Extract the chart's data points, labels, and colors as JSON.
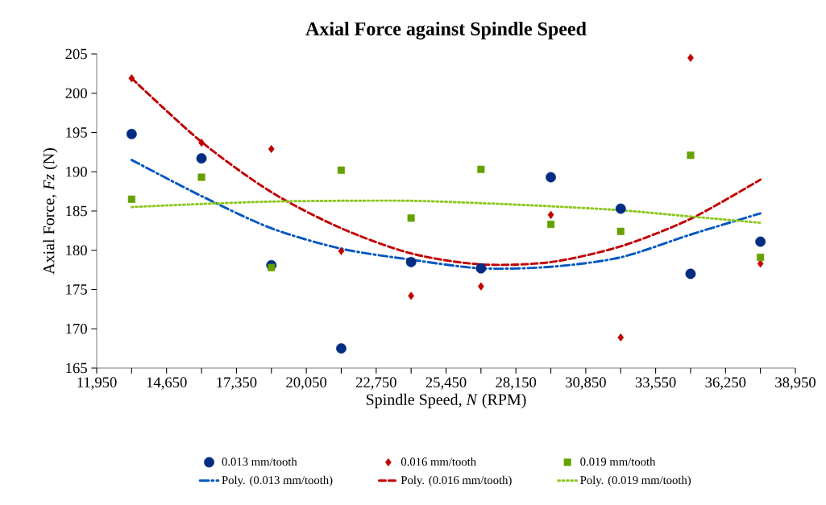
{
  "chart_data": {
    "type": "scatter",
    "title": "Axial Force against Spindle Speed",
    "xlabel": "Spindle Speed, *N* (RPM)",
    "ylabel": "Axial Force, *Fz* (N)",
    "x": [
      13300,
      16000,
      18700,
      21400,
      24100,
      26800,
      29500,
      32200,
      34900,
      37600
    ],
    "series": [
      {
        "name": "0.013 mm/tooth",
        "marker": "circle",
        "color": "#002c84",
        "values": [
          194.8,
          191.7,
          178.1,
          167.5,
          178.5,
          177.7,
          189.3,
          185.3,
          177.0,
          181.1
        ]
      },
      {
        "name": "0.016 mm/tooth",
        "marker": "diamond",
        "color": "#c00000",
        "values": [
          201.9,
          193.7,
          192.9,
          179.9,
          174.2,
          175.4,
          184.5,
          168.9,
          204.5,
          178.3
        ]
      },
      {
        "name": "0.019 mm/tooth",
        "marker": "square",
        "color": "#66a000",
        "values": [
          186.5,
          189.3,
          177.8,
          190.2,
          184.1,
          190.3,
          183.3,
          182.4,
          192.1,
          179.1
        ]
      },
      {
        "name": "Poly. (0.013 mm/tooth)",
        "type": "line",
        "marker": "none",
        "line_style": "dashdot",
        "color": "#0057c0",
        "values": [
          191.5,
          186.9,
          182.8,
          180.2,
          178.8,
          177.7,
          177.9,
          179.1,
          182.0,
          184.7
        ]
      },
      {
        "name": "Poly. (0.016 mm/tooth)",
        "type": "line",
        "marker": "none",
        "line_style": "dashed",
        "color": "#c00000",
        "values": [
          201.9,
          193.8,
          187.4,
          182.8,
          179.6,
          178.2,
          178.5,
          180.5,
          184.0,
          189.0
        ]
      },
      {
        "name": "Poly. (0.019 mm/tooth)",
        "type": "line",
        "marker": "none",
        "line_style": "dotted",
        "color": "#8cc820",
        "values": [
          185.5,
          185.9,
          186.2,
          186.3,
          186.3,
          186.0,
          185.6,
          185.1,
          184.3,
          183.5
        ]
      }
    ],
    "xlim": [
      11950,
      38950
    ],
    "xticks": [
      {
        "value": 11950,
        "label": "11,950"
      },
      {
        "value": 13300,
        "label": null
      },
      {
        "value": 14650,
        "label": "14,650"
      },
      {
        "value": 16000,
        "label": null
      },
      {
        "value": 17350,
        "label": "17,350"
      },
      {
        "value": 18700,
        "label": null
      },
      {
        "value": 20050,
        "label": "20,050"
      },
      {
        "value": 21400,
        "label": null
      },
      {
        "value": 22750,
        "label": "22,750"
      },
      {
        "value": 24100,
        "label": null
      },
      {
        "value": 25450,
        "label": "25,450"
      },
      {
        "value": 26800,
        "label": null
      },
      {
        "value": 28150,
        "label": "28,150"
      },
      {
        "value": 29500,
        "label": null
      },
      {
        "value": 30850,
        "label": "30,850"
      },
      {
        "value": 32200,
        "label": null
      },
      {
        "value": 33550,
        "label": "33,550"
      },
      {
        "value": 34900,
        "label": null
      },
      {
        "value": 36250,
        "label": "36,250"
      },
      {
        "value": 37600,
        "label": null
      },
      {
        "value": 38950,
        "label": "38,950"
      }
    ],
    "ylim": [
      165,
      205
    ],
    "yticks": [
      165,
      170,
      175,
      180,
      185,
      190,
      195,
      200,
      205
    ],
    "grid": false,
    "legend": "bottom"
  }
}
